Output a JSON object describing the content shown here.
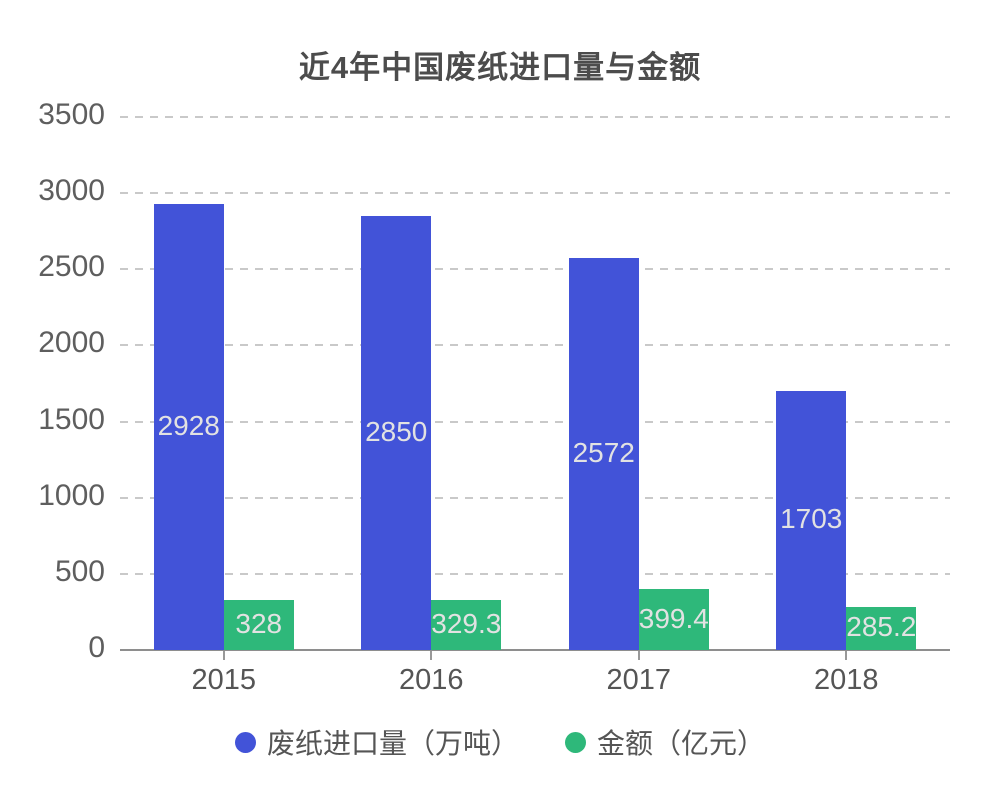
{
  "title": "近4年中国废纸进口量与金额",
  "chart_data": {
    "type": "bar",
    "title": "近4年中国废纸进口量与金额",
    "categories": [
      "2015",
      "2016",
      "2017",
      "2018"
    ],
    "series": [
      {
        "name": "废纸进口量（万吨）",
        "color": "#4253d8",
        "values": [
          2928,
          2850,
          2572,
          1703
        ]
      },
      {
        "name": "金额（亿元）",
        "color": "#2eb87a",
        "values": [
          328,
          329.3,
          399.4,
          285.2
        ]
      }
    ],
    "ylim": [
      0,
      3500
    ],
    "yticks": [
      0,
      500,
      1000,
      1500,
      2000,
      2500,
      3000,
      3500
    ],
    "xlabel": "",
    "ylabel": "",
    "grid": "dashed-horizontal",
    "value_labels": "inside-center",
    "legend_position": "bottom"
  },
  "colors": {
    "background": "#ffffff",
    "title_text": "#4c4c4c",
    "axis_text": "#5e5e5e",
    "axis_line": "#8e8e8e",
    "gridline": "#c9c9c9",
    "bar_value_text": "#e2e2e2"
  }
}
